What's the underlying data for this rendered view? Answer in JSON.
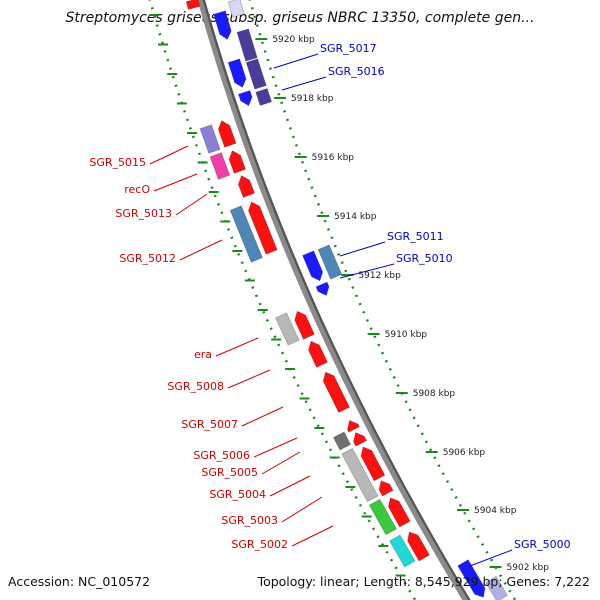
{
  "title": "Streptomyces griseus subsp. griseus NBRC 13350, complete gen...",
  "footer": {
    "accession": "Accession: NC_010572",
    "topology": "Topology: linear; Length: 8,545,929 bp; Genes: 7,222"
  },
  "colors": {
    "backbone": "#8a8a8a",
    "guide": "#1a8a1a",
    "label_forward": "#cc0000",
    "label_reverse": "#0000cc",
    "gene_red": "#ff1010",
    "gene_blue": "#1a1aff",
    "gene_navy": "#4a3d9a",
    "gene_steel": "#4f86b8",
    "gene_violet": "#8a80d8",
    "gene_magenta": "#f040a8",
    "gene_gray": "#b8b8b8",
    "gene_darkgray": "#707070",
    "gene_green": "#3cc83c",
    "gene_cyan": "#20d8d8"
  },
  "kbp_marks": [
    "5920 kbp",
    "5918 kbp",
    "5916 kbp",
    "5914 kbp",
    "5912 kbp",
    "5910 kbp",
    "5908 kbp",
    "5906 kbp",
    "5904 kbp",
    "5902 kbp"
  ],
  "gene_labels": {
    "left": [
      "SGR_5015",
      "recO",
      "SGR_5013",
      "SGR_5012",
      "era",
      "SGR_5008",
      "SGR_5007",
      "SGR_5006",
      "SGR_5005",
      "SGR_5004",
      "SGR_5003",
      "SGR_5002"
    ],
    "right": [
      "SGR_5017",
      "SGR_5016",
      "SGR_5011",
      "SGR_5010",
      "SGR_5000"
    ]
  }
}
